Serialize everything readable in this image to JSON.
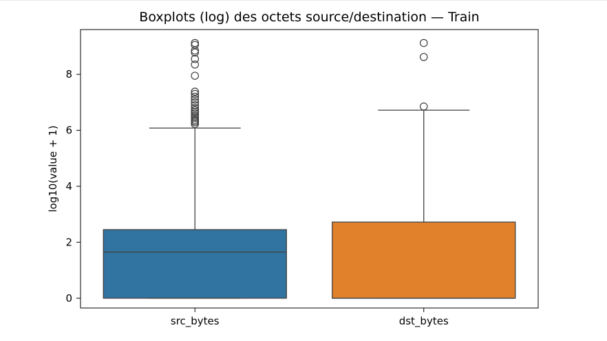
{
  "chart_data": {
    "type": "box",
    "title": "Boxplots (log) des octets source/destination — Train",
    "xlabel": "",
    "ylabel": "log10(value + 1)",
    "ylim": [
      -0.35,
      9.6
    ],
    "yticks": [
      0,
      2,
      4,
      6,
      8
    ],
    "grid": false,
    "categories": [
      "src_bytes",
      "dst_bytes"
    ],
    "series": [
      {
        "category": "src_bytes",
        "color": "#3274a1",
        "q1": 0,
        "median": 1.65,
        "q3": 2.45,
        "whisker_low": 0,
        "whisker_high": 6.08,
        "outliers": [
          6.22,
          6.28,
          6.33,
          6.38,
          6.45,
          6.52,
          6.6,
          6.66,
          6.72,
          6.8,
          6.9,
          7.0,
          7.1,
          7.2,
          7.3,
          7.38,
          7.95,
          8.35,
          8.55,
          8.78,
          8.85,
          9.05,
          9.12
        ]
      },
      {
        "category": "dst_bytes",
        "color": "#e1812c",
        "q1": 0,
        "median": 0,
        "q3": 2.72,
        "whisker_low": 0,
        "whisker_high": 6.72,
        "outliers": [
          6.85,
          8.62,
          9.12
        ]
      }
    ]
  }
}
